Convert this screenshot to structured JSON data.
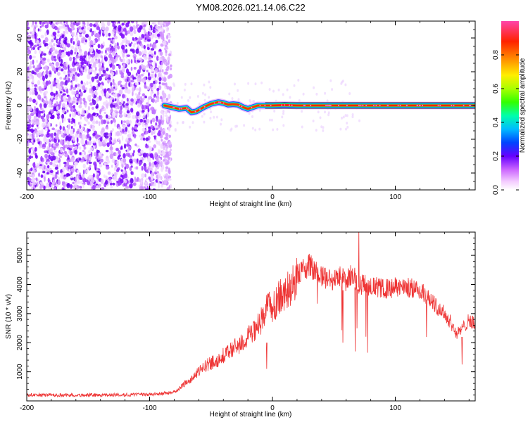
{
  "chart_data": [
    {
      "type": "heatmap",
      "title": "YM08.2026.021.14.06.C22",
      "xlabel": "Height of straight line (km)",
      "ylabel": "Frequency (Hz)",
      "xlim": [
        -200,
        165
      ],
      "ylim": [
        -50,
        50
      ],
      "xticks": [
        -200,
        -100,
        0,
        100
      ],
      "yticks": [
        -40,
        -20,
        0,
        20,
        40
      ],
      "colorbar": {
        "label": "Normalized spectral amplitude",
        "range": [
          0.0,
          1.0
        ],
        "ticks": [
          0.0,
          0.2,
          0.4,
          0.6,
          0.8
        ]
      },
      "ridge": {
        "x": [
          -88,
          -82,
          -76,
          -70,
          -66,
          -62,
          -56,
          -50,
          -44,
          -40,
          -36,
          -32,
          -28,
          -24,
          -20,
          -16,
          -12,
          -6,
          0,
          10,
          20,
          40,
          60,
          100,
          165
        ],
        "y": [
          0,
          -1,
          -2,
          -1.5,
          -4,
          -3.5,
          -1,
          1,
          2,
          1.5,
          0.5,
          0.8,
          0.5,
          -1,
          -2,
          -1,
          0,
          0,
          0,
          0.3,
          0,
          0,
          0,
          0,
          0
        ]
      }
    },
    {
      "type": "line",
      "xlabel": "Height of straight line (km)",
      "ylabel": "SNR (10 * v/v)",
      "xlim": [
        -200,
        165
      ],
      "ylim": [
        0,
        5800
      ],
      "xticks": [
        -200,
        -100,
        0,
        100
      ],
      "yticks": [
        1000,
        2000,
        3000,
        4000,
        5000
      ],
      "series": [
        {
          "name": "SNR",
          "color": "#ee3333",
          "x": [
            -200,
            -180,
            -160,
            -140,
            -120,
            -100,
            -90,
            -80,
            -75,
            -70,
            -65,
            -60,
            -55,
            -50,
            -45,
            -40,
            -35,
            -30,
            -25,
            -20,
            -15,
            -10,
            -5,
            0,
            5,
            10,
            15,
            20,
            25,
            30,
            35,
            40,
            45,
            50,
            55,
            60,
            65,
            70,
            75,
            80,
            85,
            90,
            95,
            100,
            105,
            110,
            115,
            120,
            125,
            130,
            135,
            140,
            145,
            150,
            155,
            160,
            165
          ],
          "values": [
            200,
            200,
            200,
            200,
            210,
            220,
            250,
            300,
            450,
            650,
            800,
            1000,
            1200,
            1300,
            1400,
            1550,
            1700,
            1850,
            2000,
            2200,
            2350,
            2700,
            3100,
            3300,
            3500,
            3700,
            3950,
            4300,
            4500,
            4650,
            4450,
            4250,
            4200,
            4150,
            4300,
            4100,
            4400,
            4000,
            4000,
            3950,
            3900,
            3850,
            3850,
            3900,
            3900,
            3900,
            3850,
            3800,
            3600,
            3400,
            3200,
            3000,
            2700,
            2300,
            2500,
            2800,
            2600
          ]
        }
      ]
    }
  ]
}
